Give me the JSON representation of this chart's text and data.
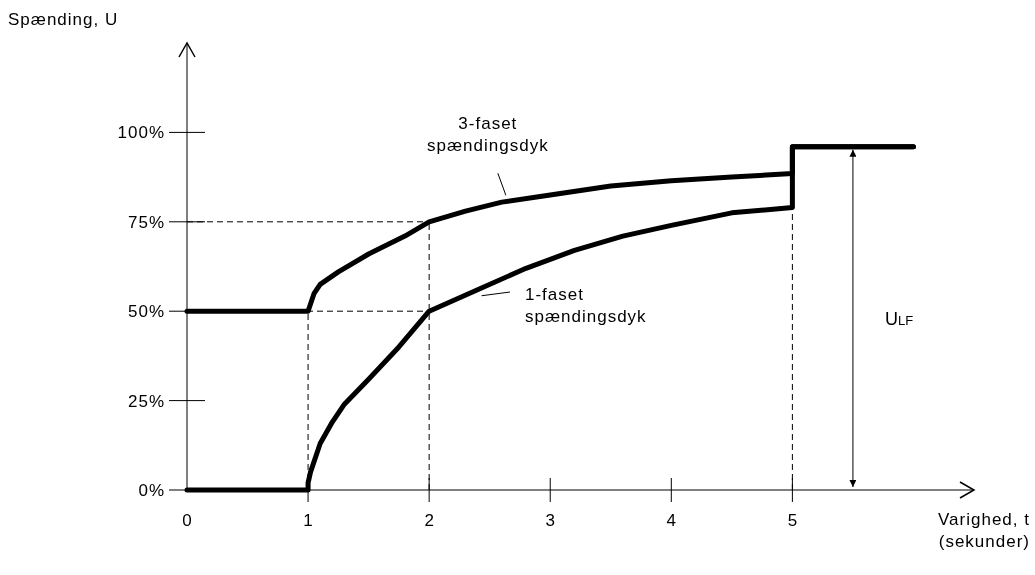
{
  "chart_data": {
    "type": "line",
    "xlabel": "Varighed, t\n(sekunder)",
    "ylabel": "Spænding, U",
    "xlim": [
      0,
      6.5
    ],
    "ylim": [
      0,
      125
    ],
    "xticks": [
      0,
      1,
      2,
      3,
      4,
      5
    ],
    "yticks": [
      {
        "value": 0,
        "label": "0%"
      },
      {
        "value": 25,
        "label": "25%"
      },
      {
        "value": 50,
        "label": "50%"
      },
      {
        "value": 75,
        "label": "75%"
      },
      {
        "value": 100,
        "label": "100%"
      }
    ],
    "series": [
      {
        "name": "3-faset\nspændingsdyk",
        "color": "#000000",
        "x": [
          0,
          1,
          1.05,
          1.1,
          1.25,
          1.5,
          1.8,
          2,
          2.3,
          2.6,
          3,
          3.5,
          4,
          4.5,
          5,
          5,
          6
        ],
        "values": [
          50,
          50,
          55,
          57.5,
          61,
          66,
          71,
          75,
          78,
          80.5,
          82.5,
          85,
          86.5,
          87.5,
          88.5,
          96,
          96
        ]
      },
      {
        "name": "1-faset\nspændingsdyk",
        "color": "#000000",
        "x": [
          0,
          1,
          1,
          1.02,
          1.1,
          1.2,
          1.3,
          1.5,
          1.75,
          2,
          2.4,
          2.8,
          3.2,
          3.6,
          4,
          4.5,
          5,
          5,
          6
        ],
        "values": [
          0,
          0,
          2,
          5,
          13,
          19,
          24,
          31,
          40,
          50,
          56,
          62,
          67,
          71,
          74,
          77.5,
          79,
          96,
          96
        ]
      }
    ],
    "ref_lines": [
      {
        "axis": "y",
        "value": 75,
        "line_style": "dashed"
      },
      {
        "axis": "y",
        "value": 50,
        "line_style": "dashed"
      },
      {
        "axis": "x",
        "value": 1,
        "line_style": "dashed"
      },
      {
        "axis": "x",
        "value": 2,
        "line_style": "dashed"
      },
      {
        "axis": "x",
        "value": 5,
        "line_style": "dashed"
      }
    ],
    "annotations": [
      "ULF"
    ],
    "grid": false,
    "marker": "none",
    "line_style": "solid"
  }
}
